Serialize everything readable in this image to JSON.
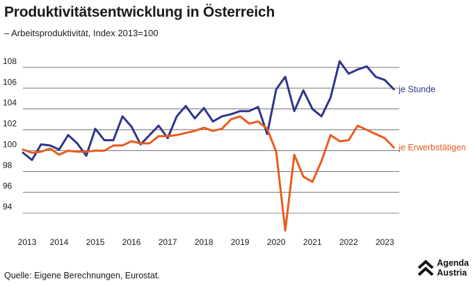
{
  "header": {
    "title": "Produktivitätsentwicklung in Österreich",
    "subtitle": "– Arbeitsproduktivität, Index 2013=100"
  },
  "footer": {
    "source": "Quelle: Eigene Berechnungen, Eurostat.",
    "logo_line1": "Agenda",
    "logo_line2": "Austria"
  },
  "colors": {
    "je_stunde": "#2e3589",
    "je_erwerbstaetigen": "#ea5b1c",
    "grid": "#222222"
  },
  "chart_data": {
    "type": "line",
    "title": "Produktivitätsentwicklung in Österreich",
    "ylabel": "",
    "xlabel": "",
    "ylim": [
      92,
      109
    ],
    "xlim": [
      2013,
      2023.4
    ],
    "yticks": [
      94,
      96,
      98,
      100,
      102,
      104,
      106,
      108
    ],
    "xticks": [
      2013,
      2014,
      2015,
      2016,
      2017,
      2018,
      2019,
      2020,
      2021,
      2022,
      2023
    ],
    "grid": true,
    "legend": "direct labels at line ends",
    "series": [
      {
        "name": "je Stunde",
        "x": [
          2013.0,
          2013.25,
          2013.5,
          2013.75,
          2014.0,
          2014.25,
          2014.5,
          2014.75,
          2015.0,
          2015.25,
          2015.5,
          2015.75,
          2016.0,
          2016.25,
          2016.5,
          2016.75,
          2017.0,
          2017.25,
          2017.5,
          2017.75,
          2018.0,
          2018.25,
          2018.5,
          2018.75,
          2019.0,
          2019.25,
          2019.5,
          2019.75,
          2020.0,
          2020.25,
          2020.5,
          2020.75,
          2021.0,
          2021.25,
          2021.5,
          2021.75,
          2022.0,
          2022.25,
          2022.5,
          2022.75,
          2023.0,
          2023.25
        ],
        "values": [
          99.8,
          99.1,
          100.6,
          100.5,
          100.1,
          101.5,
          100.7,
          99.5,
          102.1,
          101.0,
          101.0,
          103.3,
          102.3,
          100.6,
          101.5,
          102.4,
          101.2,
          103.3,
          104.3,
          103.1,
          104.1,
          102.8,
          103.3,
          103.5,
          103.8,
          103.8,
          104.2,
          101.6,
          105.9,
          107.1,
          103.8,
          105.8,
          104.0,
          103.3,
          105.1,
          108.6,
          107.4,
          107.8,
          108.1,
          107.1,
          106.8,
          105.9
        ]
      },
      {
        "name": "je Erwerbstätigen",
        "x": [
          2013.0,
          2013.25,
          2013.5,
          2013.75,
          2014.0,
          2014.25,
          2014.5,
          2014.75,
          2015.0,
          2015.25,
          2015.5,
          2015.75,
          2016.0,
          2016.25,
          2016.5,
          2016.75,
          2017.0,
          2017.25,
          2017.5,
          2017.75,
          2018.0,
          2018.25,
          2018.5,
          2018.75,
          2019.0,
          2019.25,
          2019.5,
          2019.75,
          2020.0,
          2020.25,
          2020.5,
          2020.75,
          2021.0,
          2021.25,
          2021.5,
          2021.75,
          2022.0,
          2022.25,
          2022.5,
          2022.75,
          2023.0,
          2023.25
        ],
        "values": [
          100.1,
          99.8,
          99.9,
          100.2,
          99.6,
          100.0,
          99.9,
          99.9,
          100.0,
          100.0,
          100.5,
          100.5,
          100.9,
          100.7,
          100.7,
          101.4,
          101.4,
          101.5,
          101.7,
          101.9,
          102.2,
          101.9,
          102.1,
          103.0,
          103.3,
          102.6,
          102.8,
          102.1,
          99.9,
          92.3,
          99.6,
          97.5,
          97.0,
          99.0,
          101.5,
          100.9,
          101.0,
          102.4,
          102.0,
          101.6,
          101.2,
          100.3
        ]
      }
    ]
  }
}
